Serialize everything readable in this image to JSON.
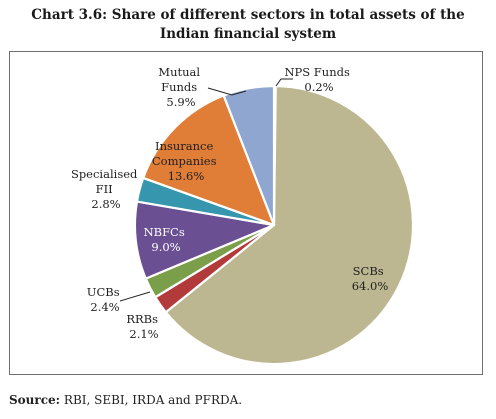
{
  "title_line1": "Chart 3.6: Share of different sectors in total assets of the",
  "title_line2": "Indian financial system",
  "source_label": "Source:",
  "source_text": " RBI, SEBI, IRDA and PFRDA.",
  "chart_data": {
    "type": "pie",
    "start": "12 o'clock, clockwise",
    "slices": [
      {
        "name": "NPS Funds",
        "value": 0.2,
        "label": "0.2%",
        "color": "#e8c9b4"
      },
      {
        "name": "SCBs",
        "value": 64.0,
        "label": "64.0%",
        "color": "#bcb791"
      },
      {
        "name": "RRBs",
        "value": 2.1,
        "label": "2.1%",
        "color": "#b23a3a"
      },
      {
        "name": "UCBs",
        "value": 2.4,
        "label": "2.4%",
        "color": "#7a9e4a"
      },
      {
        "name": "NBFCs",
        "value": 9.0,
        "label": "9.0%",
        "color": "#6a4f93"
      },
      {
        "name": "Specialised FII",
        "value": 2.8,
        "label": "2.8%",
        "color": "#3596ad"
      },
      {
        "name": "Insurance Companies",
        "value": 13.6,
        "label": "13.6%",
        "color": "#e07e37"
      },
      {
        "name": "Mutual Funds",
        "value": 5.9,
        "label": "5.9%",
        "color": "#8ea6d0"
      }
    ]
  }
}
